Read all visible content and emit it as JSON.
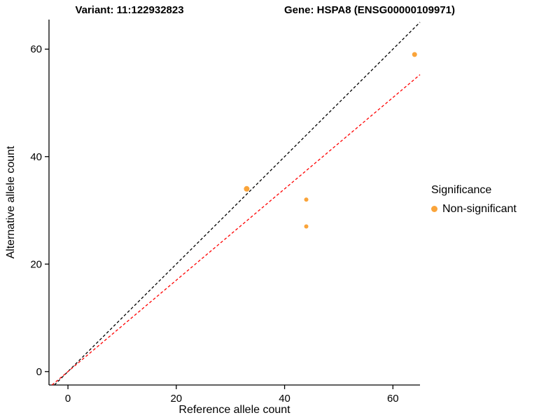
{
  "chart_data": {
    "type": "scatter",
    "titles": {
      "variant": "Variant: 11:122932823",
      "gene": "Gene: HSPA8 (ENSG00000109971)"
    },
    "xlabel": "Reference allele count",
    "ylabel": "Alternative allele count",
    "xlim": [
      -3.5,
      65
    ],
    "ylim": [
      -2.5,
      65.5
    ],
    "xticks": [
      0,
      20,
      40,
      60
    ],
    "yticks": [
      0,
      20,
      40,
      60
    ],
    "grid": false,
    "legend_position": "right",
    "points": [
      {
        "x": 33,
        "y": 34,
        "r": 4
      },
      {
        "x": 44,
        "y": 32,
        "r": 3
      },
      {
        "x": 44,
        "y": 27,
        "r": 3
      },
      {
        "x": 64,
        "y": 59,
        "r": 3.5
      }
    ],
    "point_color": "#FAA43A",
    "reference_lines": [
      {
        "name": "identity-line",
        "slope": 1,
        "intercept": 0,
        "color": "#000000",
        "dash": "4 3"
      },
      {
        "name": "expected-line",
        "slope": 0.85,
        "intercept": 0,
        "color": "#FF0000",
        "dash": "4 3"
      }
    ],
    "legend": {
      "title": "Significance",
      "items": [
        {
          "label": "Non-significant",
          "color": "#FAA43A"
        }
      ]
    }
  }
}
